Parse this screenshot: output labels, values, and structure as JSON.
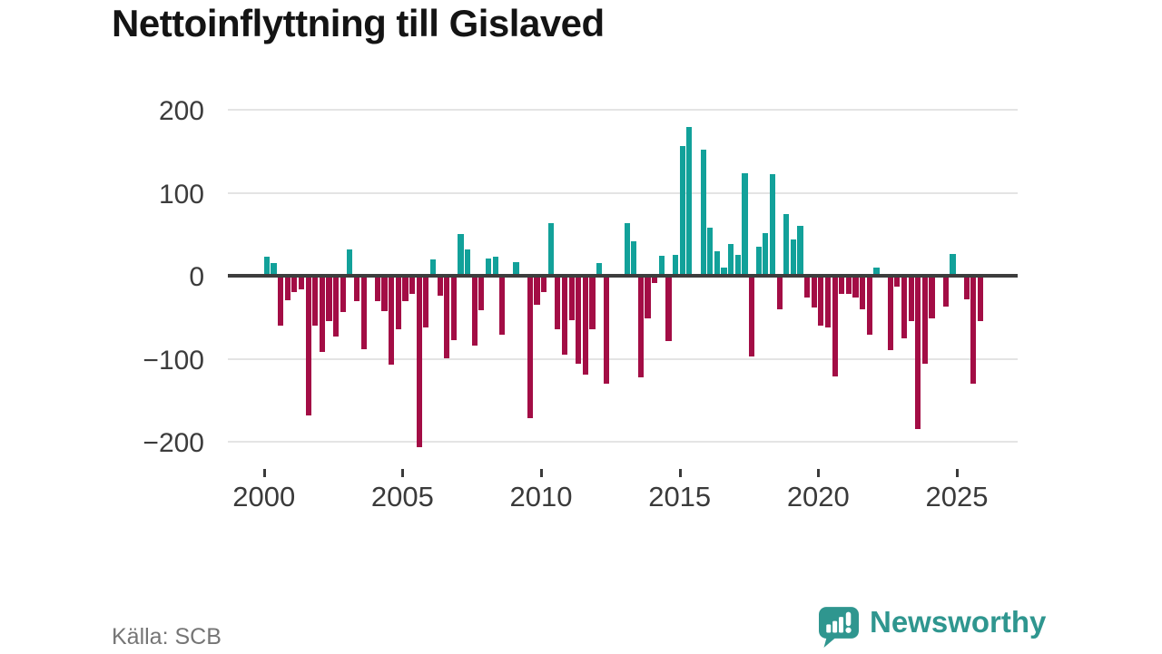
{
  "title": "Nettoinflyttning till Gislaved",
  "source": "Källa: SCB",
  "logo": {
    "text": "Newsworthy",
    "icon": "newsworthy-speech-bubble-bar-chart-icon"
  },
  "colors": {
    "positive_bar": "#12a19a",
    "negative_bar": "#a30d45",
    "zero_line": "#3d3d3d",
    "gridline": "#e4e4e4",
    "axis_text": "#3a3a3a",
    "logo_teal": "#2f968f"
  },
  "chart_data": {
    "type": "bar",
    "title": "Nettoinflyttning till Gislaved",
    "xlabel": "",
    "ylabel": "",
    "x_unit": "quarter",
    "range": "2000Q1–2025Q4",
    "ylim": [
      -200,
      200
    ],
    "grid": true,
    "legend": "none",
    "y_ticks": [
      {
        "label": "200",
        "value": 200
      },
      {
        "label": "100",
        "value": 100
      },
      {
        "label": "0",
        "value": 0
      },
      {
        "label": "−100",
        "value": -100
      },
      {
        "label": "−200",
        "value": -200
      }
    ],
    "x_tick_labels": [
      "2000",
      "2005",
      "2010",
      "2015",
      "2020",
      "2025"
    ],
    "series": [
      {
        "year": 2000,
        "values": [
          25,
          17,
          -60,
          -29
        ]
      },
      {
        "year": 2001,
        "values": [
          -20,
          -16,
          -168,
          -60
        ]
      },
      {
        "year": 2002,
        "values": [
          -92,
          -55,
          -73,
          -44
        ]
      },
      {
        "year": 2003,
        "values": [
          34,
          -31,
          -88,
          0
        ]
      },
      {
        "year": 2004,
        "values": [
          -30,
          -43,
          -107,
          -64
        ]
      },
      {
        "year": 2005,
        "values": [
          -30,
          -22,
          -206,
          -62
        ]
      },
      {
        "year": 2006,
        "values": [
          22,
          -24,
          -99,
          -77
        ]
      },
      {
        "year": 2007,
        "values": [
          53,
          34,
          -84,
          -42
        ]
      },
      {
        "year": 2008,
        "values": [
          23,
          25,
          -71,
          0
        ]
      },
      {
        "year": 2009,
        "values": [
          19,
          3,
          -172,
          -35
        ]
      },
      {
        "year": 2010,
        "values": [
          -20,
          66,
          -64,
          -95
        ]
      },
      {
        "year": 2011,
        "values": [
          -53,
          -106,
          -119,
          -64
        ]
      },
      {
        "year": 2012,
        "values": [
          17,
          -130,
          0,
          0
        ]
      },
      {
        "year": 2013,
        "values": [
          66,
          44,
          -122,
          -51
        ]
      },
      {
        "year": 2014,
        "values": [
          -9,
          26,
          -79,
          27
        ]
      },
      {
        "year": 2015,
        "values": [
          159,
          182,
          0,
          154
        ]
      },
      {
        "year": 2016,
        "values": [
          60,
          32,
          12,
          41
        ]
      },
      {
        "year": 2017,
        "values": [
          27,
          126,
          -97,
          37
        ]
      },
      {
        "year": 2018,
        "values": [
          54,
          125,
          -40,
          77
        ]
      },
      {
        "year": 2019,
        "values": [
          46,
          62,
          -26,
          -38
        ]
      },
      {
        "year": 2020,
        "values": [
          -60,
          -62,
          -121,
          -22
        ]
      },
      {
        "year": 2021,
        "values": [
          -22,
          -26,
          -40,
          -71
        ]
      },
      {
        "year": 2022,
        "values": [
          12,
          0,
          -90,
          -13
        ]
      },
      {
        "year": 2023,
        "values": [
          -75,
          -55,
          -185,
          -106
        ]
      },
      {
        "year": 2024,
        "values": [
          -51,
          3,
          -37,
          29
        ]
      },
      {
        "year": 2025,
        "values": [
          3,
          -28,
          -130,
          -55
        ]
      }
    ]
  }
}
